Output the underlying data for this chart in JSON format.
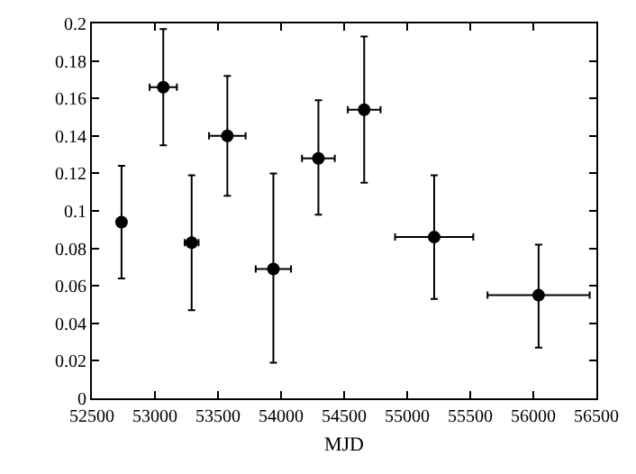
{
  "chart_data": {
    "type": "scatter",
    "xlabel": "MJD",
    "x": [
      52735,
      53066,
      53291,
      53574,
      53939,
      54296,
      54659,
      55214,
      56042
    ],
    "values": [
      0.094,
      0.166,
      0.083,
      0.14,
      0.069,
      0.128,
      0.154,
      0.086,
      0.055
    ],
    "errors": [
      [
        0.064,
        0.124
      ],
      [
        0.135,
        0.197
      ],
      [
        0.047,
        0.119
      ],
      [
        0.108,
        0.172
      ],
      [
        0.019,
        0.12
      ],
      [
        0.098,
        0.159
      ],
      [
        0.115,
        0.193
      ],
      [
        0.053,
        0.119
      ],
      [
        0.027,
        0.082
      ]
    ],
    "xerrors": [
      null,
      108,
      55,
      145,
      140,
      130,
      130,
      310,
      405
    ],
    "color": "#000000",
    "marker": "circle",
    "xlim": [
      52500,
      56500
    ],
    "xticks": [
      52500,
      53000,
      53500,
      54000,
      54500,
      55000,
      55500,
      56000,
      56500
    ],
    "ylim": [
      0,
      0.2
    ],
    "yticks": [
      0,
      0.02,
      0.04,
      0.06,
      0.08,
      0.1,
      0.12,
      0.14,
      0.16,
      0.18,
      0.2
    ],
    "grid": false
  }
}
